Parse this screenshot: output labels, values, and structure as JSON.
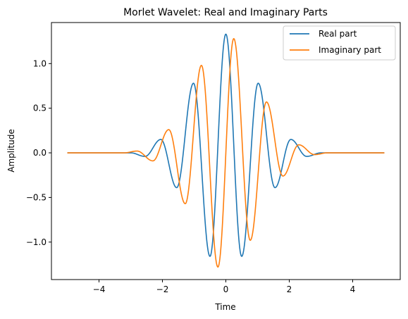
{
  "chart_data": {
    "type": "line",
    "title": "Morlet Wavelet: Real and Imaginary Parts",
    "xlabel": "Time",
    "ylabel": "Amplitude",
    "xlim": [
      -5.5,
      5.5
    ],
    "ylim": [
      -1.42,
      1.46
    ],
    "xticks": [
      -4,
      -2,
      0,
      2,
      4
    ],
    "xtick_labels": [
      "−4",
      "−2",
      "0",
      "2",
      "4"
    ],
    "yticks": [
      -1.0,
      -0.5,
      0.0,
      0.5,
      1.0
    ],
    "ytick_labels": [
      "−1.0",
      "−0.5",
      "0.0",
      "0.5",
      "1.0"
    ],
    "grid": false,
    "legend_position": "top-right",
    "x_range": [
      -5,
      5
    ],
    "series": [
      {
        "name": "Real part",
        "color": "#1f77b4",
        "points": [
          [
            -5.0,
            0.0
          ],
          [
            -3.0,
            0.0
          ],
          [
            -2.55,
            -0.04
          ],
          [
            -2.05,
            0.15
          ],
          [
            -1.55,
            -0.39
          ],
          [
            -1.02,
            0.78
          ],
          [
            -0.5,
            -1.16
          ],
          [
            0.0,
            1.33
          ],
          [
            0.5,
            -1.16
          ],
          [
            1.02,
            0.78
          ],
          [
            1.55,
            -0.39
          ],
          [
            2.05,
            0.15
          ],
          [
            2.55,
            -0.04
          ],
          [
            3.0,
            0.0
          ],
          [
            5.0,
            0.0
          ]
        ]
      },
      {
        "name": "Imaginary part",
        "color": "#ff7f0e",
        "points": [
          [
            -5.0,
            0.0
          ],
          [
            -3.2,
            0.0
          ],
          [
            -2.8,
            0.02
          ],
          [
            -2.3,
            -0.09
          ],
          [
            -1.8,
            0.26
          ],
          [
            -1.28,
            -0.57
          ],
          [
            -0.77,
            0.98
          ],
          [
            -0.25,
            -1.28
          ],
          [
            0.25,
            1.28
          ],
          [
            0.77,
            -0.98
          ],
          [
            1.28,
            0.57
          ],
          [
            1.8,
            -0.26
          ],
          [
            2.3,
            0.09
          ],
          [
            2.8,
            -0.02
          ],
          [
            3.2,
            0.0
          ],
          [
            5.0,
            0.0
          ]
        ]
      }
    ]
  }
}
